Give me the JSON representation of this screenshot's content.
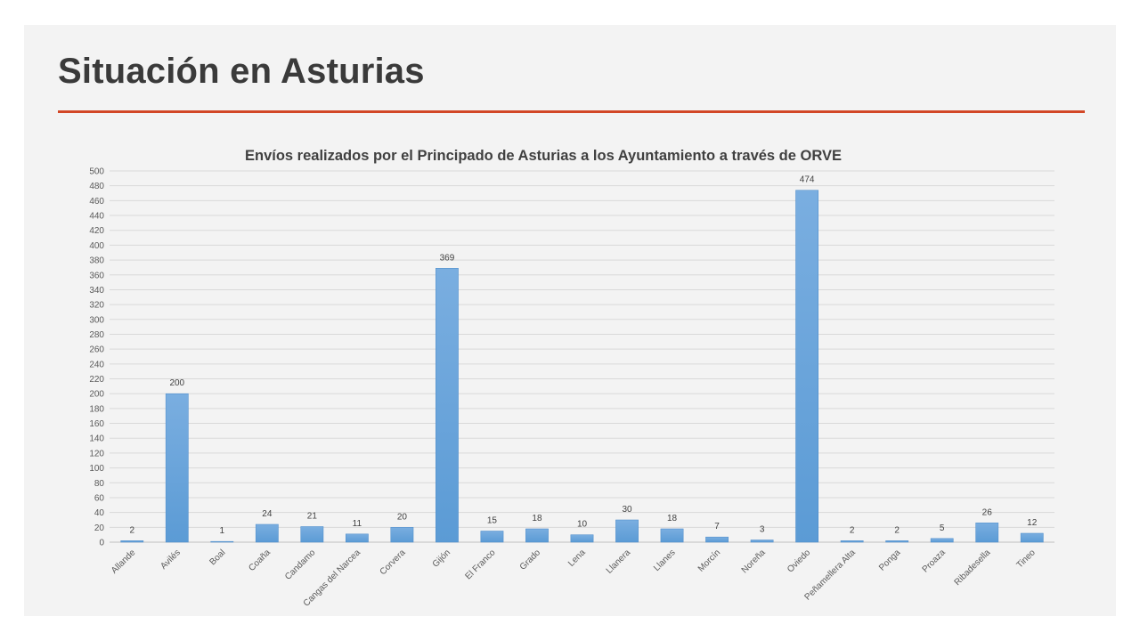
{
  "slide": {
    "title": "Situación en Asturias",
    "accent_color": "#d24726"
  },
  "chart_data": {
    "type": "bar",
    "title": "Envíos realizados por el Principado de Asturias a los Ayuntamiento a través de ORVE",
    "xlabel": "",
    "ylabel": "",
    "ylim": [
      0,
      500
    ],
    "ytick_step": 20,
    "grid": true,
    "legend": "none",
    "bar_color": "#5b9bd5",
    "categories": [
      "Allande",
      "Avilés",
      "Boal",
      "Coaña",
      "Candamo",
      "Cangas del Narcea",
      "Corvera",
      "Gijón",
      "El Franco",
      "Grado",
      "Lena",
      "Llanera",
      "Llanes",
      "Morcín",
      "Noreña",
      "Oviedo",
      "Peñamellera Alta",
      "Ponga",
      "Proaza",
      "Ribadesella",
      "Tineo"
    ],
    "values": [
      2,
      200,
      1,
      24,
      21,
      11,
      20,
      369,
      15,
      18,
      10,
      30,
      18,
      7,
      3,
      474,
      2,
      2,
      5,
      26,
      12
    ]
  }
}
